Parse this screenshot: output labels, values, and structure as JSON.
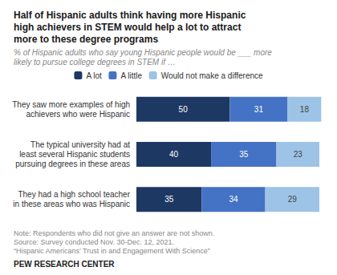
{
  "chart_data": {
    "type": "bar",
    "orientation": "horizontal",
    "stacked": true,
    "data_labels": true,
    "title": "Half of Hispanic adults think having more Hispanic\nhigh achievers in STEM would help a lot to attract\nmore to these degree programs",
    "subtitle": "% of Hispanic adults who say young Hispanic people would be ___ more\nlikely to pursue college degrees in STEM if …",
    "annotations": [
      "Note: Respondents who did not give an answer are not shown.\nSource: Survey conducted Nov. 30-Dec. 12, 2021.\n“Hispanic Americans’ Trust in and Engagement With Science”",
      "PEW RESEARCH CENTER"
    ],
    "categories": [
      "They saw more examples of high\nachievers who were Hispanic",
      "The typical university had at\nleast several Hispanic students\npursuing degrees in these areas",
      "They had a high school teacher\nin these areas who was Hispanic"
    ],
    "series": [
      {
        "name": "A lot",
        "color": "#1e3864",
        "values": [
          50,
          40,
          35
        ]
      },
      {
        "name": "A little",
        "color": "#4472c4",
        "values": [
          31,
          35,
          34
        ]
      },
      {
        "name": "Would not make a difference",
        "color": "#9dc3e6",
        "values": [
          18,
          23,
          29
        ]
      }
    ],
    "xlim": [
      0,
      101
    ],
    "tick_labels": "y",
    "legend": "top",
    "grid": false
  }
}
